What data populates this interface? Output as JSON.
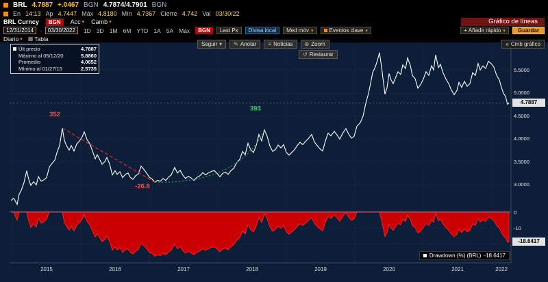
{
  "header": {
    "ticker": "BRL",
    "last": "4.7887",
    "change": "+.0467",
    "source": "BGN",
    "bid_ask": "4.7874/4.7901",
    "source2": "BGN",
    "row2": [
      {
        "l": "En",
        "v": "14:13"
      },
      {
        "l": "Ap",
        "v": "4.7447"
      },
      {
        "l": "Máx",
        "v": "4.8180"
      },
      {
        "l": "Mín",
        "v": "4.7367"
      },
      {
        "l": "Cierre",
        "v": "4.742"
      },
      {
        "l": "Val",
        "v": "03/30/22"
      }
    ]
  },
  "funcbar": {
    "security": "BRL Curncy",
    "source": "BGN",
    "tab1": "Acc",
    "tab2": "Camb",
    "title": "Gráfico de líneas"
  },
  "toolbar": {
    "date_from": "12/31/2014",
    "date_to": "03/30/2022",
    "periods": [
      "1D",
      "3D",
      "1M",
      "6M",
      "YTD",
      "1A",
      "5A",
      "Máx"
    ],
    "source": "BGN",
    "price_field": "Last Px",
    "local_currency": "Divisa local",
    "mov_avg": "Med móv",
    "key_events": "Eventos clave",
    "quick_add": "+ Añadir rápido",
    "save": "Guardar",
    "frequency": "Diario",
    "table": "Tabla",
    "change_chart": "Cmb gráfico"
  },
  "chart_buttons": {
    "follow": "Seguir",
    "annotate": "Anotar",
    "news": "Noticias",
    "zoom": "Zoom",
    "restore": "Restaurar"
  },
  "legend": {
    "rows": [
      {
        "label": "Últ precio",
        "value": "4.7887"
      },
      {
        "label": "Máximo al 05/12/20",
        "value": "5.8860"
      },
      {
        "label": "Promedio",
        "value": "4.0652"
      },
      {
        "label": "Mínimo al 01/27/15",
        "value": "2.5735"
      }
    ]
  },
  "price_badge": "4.7887",
  "drawdown_value": "-18.6417",
  "drawdown_legend_label": "Drawdown (%) (BRL)",
  "colors": {
    "chart_bg": "#0c1e38",
    "line": "#ffffff",
    "drawdown": "#d40000",
    "accent_amber": "#ffc400",
    "annotation_red": "#ff5050",
    "annotation_green": "#3ecf70"
  },
  "chart_data": {
    "type": "line",
    "title": "Gráfico de líneas",
    "x_range": [
      2014.96,
      2022.28
    ],
    "y_range": [
      2.45,
      6.05
    ],
    "y_ticks": [
      3.0,
      3.5,
      4.0,
      4.5,
      5.0,
      5.5
    ],
    "year_labels": [
      2015,
      2016,
      2017,
      2018,
      2019,
      2020,
      2021,
      2022
    ],
    "last_price": 4.7887,
    "stats": {
      "last": 4.7887,
      "max": 5.886,
      "max_date": "05/12/20",
      "mean": 4.0652,
      "min": 2.5735,
      "min_date": "01/27/15"
    },
    "series": [
      {
        "name": "Últ precio",
        "color": "#ffffff",
        "points": [
          [
            2014.98,
            2.66
          ],
          [
            2015.02,
            2.71
          ],
          [
            2015.07,
            2.574
          ],
          [
            2015.1,
            2.8
          ],
          [
            2015.13,
            2.88
          ],
          [
            2015.17,
            3.05
          ],
          [
            2015.21,
            3.31
          ],
          [
            2015.24,
            3.12
          ],
          [
            2015.27,
            2.99
          ],
          [
            2015.31,
            3.07
          ],
          [
            2015.35,
            3.0
          ],
          [
            2015.38,
            3.18
          ],
          [
            2015.42,
            3.08
          ],
          [
            2015.46,
            3.11
          ],
          [
            2015.5,
            3.16
          ],
          [
            2015.54,
            3.39
          ],
          [
            2015.58,
            3.47
          ],
          [
            2015.62,
            3.54
          ],
          [
            2015.65,
            3.7
          ],
          [
            2015.69,
            3.86
          ],
          [
            2015.73,
            4.24
          ],
          [
            2015.76,
            3.97
          ],
          [
            2015.79,
            3.86
          ],
          [
            2015.83,
            3.76
          ],
          [
            2015.86,
            3.86
          ],
          [
            2015.9,
            3.74
          ],
          [
            2015.94,
            3.89
          ],
          [
            2015.98,
            3.96
          ],
          [
            2016.02,
            4.05
          ],
          [
            2016.05,
            4.16
          ],
          [
            2016.09,
            3.99
          ],
          [
            2016.13,
            3.9
          ],
          [
            2016.17,
            3.74
          ],
          [
            2016.21,
            3.57
          ],
          [
            2016.24,
            3.66
          ],
          [
            2016.28,
            3.54
          ],
          [
            2016.31,
            3.45
          ],
          [
            2016.35,
            3.51
          ],
          [
            2016.38,
            3.6
          ],
          [
            2016.42,
            3.46
          ],
          [
            2016.46,
            3.22
          ],
          [
            2016.5,
            3.31
          ],
          [
            2016.53,
            3.23
          ],
          [
            2016.57,
            3.29
          ],
          [
            2016.61,
            3.16
          ],
          [
            2016.65,
            3.23
          ],
          [
            2016.69,
            3.26
          ],
          [
            2016.72,
            3.17
          ],
          [
            2016.76,
            3.12
          ],
          [
            2016.8,
            3.2
          ],
          [
            2016.84,
            3.24
          ],
          [
            2016.88,
            3.41
          ],
          [
            2016.92,
            3.34
          ],
          [
            2016.96,
            3.26
          ],
          [
            2017.0,
            3.17
          ],
          [
            2017.04,
            3.13
          ],
          [
            2017.08,
            3.06
          ],
          [
            2017.12,
            3.1
          ],
          [
            2017.16,
            3.08
          ],
          [
            2017.2,
            3.14
          ],
          [
            2017.24,
            3.1
          ],
          [
            2017.28,
            3.17
          ],
          [
            2017.32,
            3.22
          ],
          [
            2017.37,
            3.38
          ],
          [
            2017.41,
            3.26
          ],
          [
            2017.45,
            3.32
          ],
          [
            2017.49,
            3.21
          ],
          [
            2017.53,
            3.14
          ],
          [
            2017.57,
            3.19
          ],
          [
            2017.61,
            3.15
          ],
          [
            2017.65,
            3.1
          ],
          [
            2017.7,
            3.17
          ],
          [
            2017.74,
            3.2
          ],
          [
            2017.78,
            3.27
          ],
          [
            2017.82,
            3.22
          ],
          [
            2017.86,
            3.26
          ],
          [
            2017.91,
            3.3
          ],
          [
            2017.95,
            3.31
          ],
          [
            2017.99,
            3.25
          ],
          [
            2018.03,
            3.18
          ],
          [
            2018.07,
            3.25
          ],
          [
            2018.11,
            3.28
          ],
          [
            2018.15,
            3.23
          ],
          [
            2018.19,
            3.31
          ],
          [
            2018.23,
            3.36
          ],
          [
            2018.27,
            3.47
          ],
          [
            2018.32,
            3.56
          ],
          [
            2018.36,
            3.73
          ],
          [
            2018.4,
            3.66
          ],
          [
            2018.44,
            3.91
          ],
          [
            2018.48,
            3.77
          ],
          [
            2018.52,
            3.71
          ],
          [
            2018.56,
            3.86
          ],
          [
            2018.6,
            4.1
          ],
          [
            2018.64,
            3.96
          ],
          [
            2018.68,
            4.2
          ],
          [
            2018.72,
            4.06
          ],
          [
            2018.76,
            3.85
          ],
          [
            2018.8,
            3.73
          ],
          [
            2018.84,
            3.77
          ],
          [
            2018.88,
            3.87
          ],
          [
            2018.92,
            3.81
          ],
          [
            2018.96,
            3.88
          ],
          [
            2019.0,
            3.71
          ],
          [
            2019.04,
            3.65
          ],
          [
            2019.08,
            3.71
          ],
          [
            2019.12,
            3.77
          ],
          [
            2019.16,
            3.86
          ],
          [
            2019.2,
            3.93
          ],
          [
            2019.24,
            3.88
          ],
          [
            2019.28,
            3.95
          ],
          [
            2019.32,
            4.01
          ],
          [
            2019.37,
            4.1
          ],
          [
            2019.41,
            3.94
          ],
          [
            2019.45,
            3.86
          ],
          [
            2019.49,
            3.79
          ],
          [
            2019.53,
            3.74
          ],
          [
            2019.57,
            3.96
          ],
          [
            2019.61,
            4.13
          ],
          [
            2019.65,
            4.07
          ],
          [
            2019.7,
            4.17
          ],
          [
            2019.74,
            4.09
          ],
          [
            2019.78,
            4.0
          ],
          [
            2019.82,
            4.12
          ],
          [
            2019.87,
            4.23
          ],
          [
            2019.91,
            4.11
          ],
          [
            2019.95,
            4.02
          ],
          [
            2019.99,
            4.06
          ],
          [
            2020.03,
            4.28
          ],
          [
            2020.08,
            4.36
          ],
          [
            2020.12,
            4.5
          ],
          [
            2020.16,
            4.78
          ],
          [
            2020.2,
            5.0
          ],
          [
            2020.23,
            5.22
          ],
          [
            2020.26,
            5.45
          ],
          [
            2020.3,
            5.58
          ],
          [
            2020.33,
            5.72
          ],
          [
            2020.36,
            5.886
          ],
          [
            2020.39,
            5.58
          ],
          [
            2020.41,
            5.33
          ],
          [
            2020.44,
            4.98
          ],
          [
            2020.47,
            5.12
          ],
          [
            2020.5,
            5.43
          ],
          [
            2020.53,
            5.29
          ],
          [
            2020.56,
            5.21
          ],
          [
            2020.6,
            5.36
          ],
          [
            2020.63,
            5.47
          ],
          [
            2020.67,
            5.41
          ],
          [
            2020.7,
            5.62
          ],
          [
            2020.74,
            5.54
          ],
          [
            2020.77,
            5.77
          ],
          [
            2020.81,
            5.61
          ],
          [
            2020.84,
            5.39
          ],
          [
            2020.88,
            5.32
          ],
          [
            2020.92,
            5.11
          ],
          [
            2020.96,
            5.19
          ],
          [
            2021.0,
            5.31
          ],
          [
            2021.04,
            5.47
          ],
          [
            2021.08,
            5.39
          ],
          [
            2021.12,
            5.6
          ],
          [
            2021.15,
            5.51
          ],
          [
            2021.18,
            5.84
          ],
          [
            2021.22,
            5.56
          ],
          [
            2021.25,
            5.63
          ],
          [
            2021.29,
            5.44
          ],
          [
            2021.33,
            5.31
          ],
          [
            2021.37,
            5.21
          ],
          [
            2021.41,
            5.07
          ],
          [
            2021.45,
            4.97
          ],
          [
            2021.49,
            5.06
          ],
          [
            2021.52,
            5.24
          ],
          [
            2021.56,
            5.13
          ],
          [
            2021.6,
            5.26
          ],
          [
            2021.64,
            5.15
          ],
          [
            2021.68,
            5.21
          ],
          [
            2021.72,
            5.45
          ],
          [
            2021.76,
            5.39
          ],
          [
            2021.8,
            5.65
          ],
          [
            2021.83,
            5.51
          ],
          [
            2021.87,
            5.6
          ],
          [
            2021.91,
            5.54
          ],
          [
            2021.95,
            5.7
          ],
          [
            2021.99,
            5.65
          ],
          [
            2022.03,
            5.57
          ],
          [
            2022.07,
            5.39
          ],
          [
            2022.11,
            5.29
          ],
          [
            2022.14,
            5.13
          ],
          [
            2022.17,
            5.0
          ],
          [
            2022.2,
            4.93
          ],
          [
            2022.23,
            4.76
          ],
          [
            2022.25,
            4.7887
          ]
        ]
      }
    ],
    "annotations": [
      {
        "text": "352",
        "color": "#ff5050",
        "x": 2015.62,
        "y": 4.5
      },
      {
        "text": "-26.8",
        "color": "#ff5050",
        "x": 2016.9,
        "y": 2.93
      },
      {
        "text": "393",
        "color": "#3ecf70",
        "x": 2018.55,
        "y": 4.62
      }
    ],
    "trendlines": [
      {
        "style": "dashed",
        "color": "#d83030",
        "from": [
          2015.73,
          4.24
        ],
        "to": [
          2017.08,
          3.06
        ]
      },
      {
        "style": "dotted",
        "color": "#2fa35c",
        "from": [
          2017.08,
          3.06
        ],
        "control": [
          2018.3,
          3.02
        ],
        "to": [
          2018.68,
          4.2
        ]
      }
    ],
    "subpanel": {
      "type": "area",
      "name": "Drawdown (%) (BRL)",
      "color": "#d40000",
      "metric": "drawdown_pct_from_running_max",
      "y_range": [
        0,
        -32
      ],
      "y_ticks": [
        0,
        -10
      ],
      "grid_ticks": [
        -10,
        -20
      ],
      "last": -18.6417
    }
  }
}
